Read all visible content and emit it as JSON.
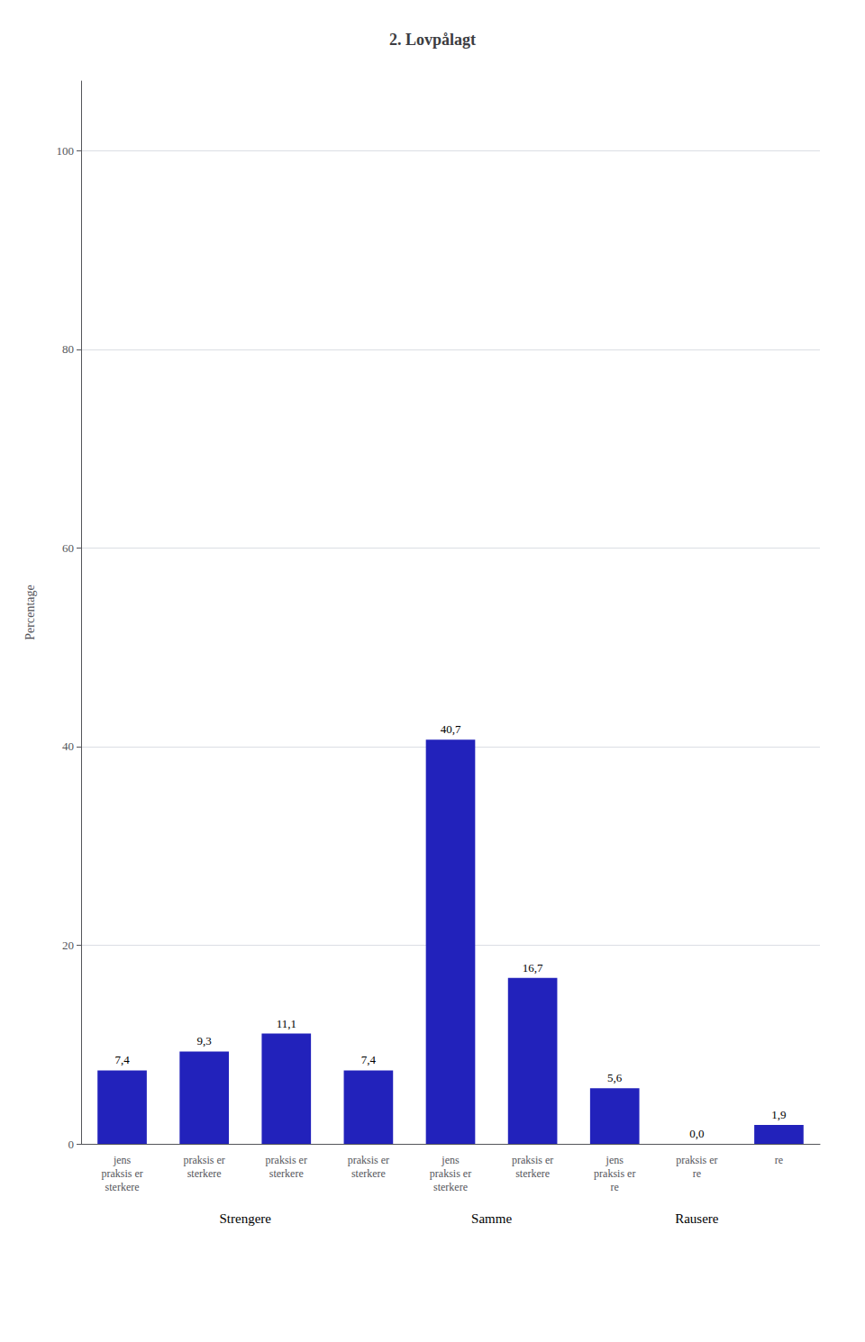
{
  "chart_data": {
    "type": "bar",
    "title": "2. Lovpålagt",
    "ylabel": "Percentage",
    "categories": [
      "jens\npraksis er\nsterkere",
      "praksis er\nsterkere",
      "praksis er\nsterkere",
      "praksis er\nsterkere",
      "jens\npraksis er\nsterkere",
      "praksis er\nsterkere",
      "jens\npraksis er\nre",
      "praksis er\nre",
      "re"
    ],
    "values": [
      7.4,
      9.3,
      11.1,
      7.4,
      40.7,
      16.7,
      5.6,
      0.0,
      1.9
    ],
    "value_labels": [
      "7,4",
      "9,3",
      "11,1",
      "7,4",
      "40,7",
      "16,7",
      "5,6",
      "0,0",
      "1,9"
    ],
    "data_labels": true,
    "color": "#2222bb",
    "ylim": [
      0,
      107
    ],
    "yticks": [
      0,
      20,
      40,
      60,
      80,
      100
    ],
    "grid": true,
    "annotations": [
      {
        "text": "Strengere",
        "from": 0,
        "to": 3
      },
      {
        "text": "Samme",
        "from": 4,
        "to": 5
      },
      {
        "text": "Rausere",
        "from": 6,
        "to": 8
      }
    ]
  }
}
